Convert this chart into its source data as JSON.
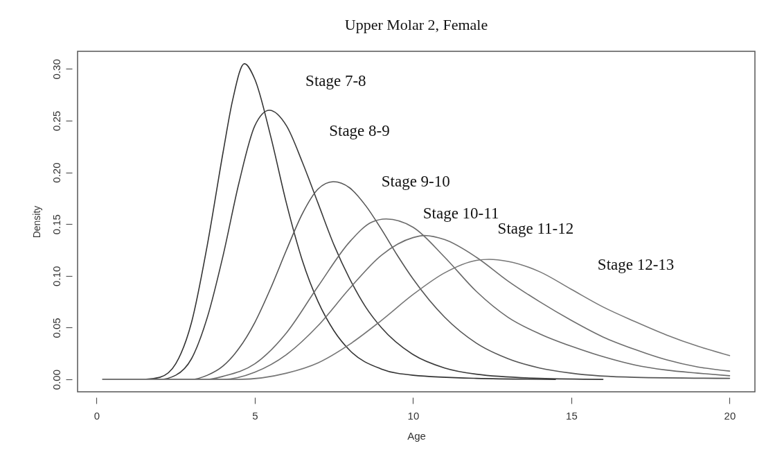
{
  "chart_data": {
    "type": "line",
    "title": "Upper Molar 2, Female",
    "xlabel": "Age",
    "ylabel": "Density",
    "xlim": [
      -0.6,
      20.8
    ],
    "ylim": [
      -0.012,
      0.317
    ],
    "xticks": [
      0,
      5,
      10,
      15,
      20
    ],
    "yticks": [
      {
        "value": 0,
        "label": "0.00"
      },
      {
        "value": 0.05,
        "label": "0.05"
      },
      {
        "value": 0.1,
        "label": "0.10"
      },
      {
        "value": 0.15,
        "label": "0.15"
      },
      {
        "value": 0.2,
        "label": "0.20"
      },
      {
        "value": 0.25,
        "label": "0.25"
      },
      {
        "value": 0.3,
        "label": "0.30"
      }
    ],
    "grid": false,
    "legend": false,
    "line_style": "solid",
    "series": [
      {
        "color": "#333333",
        "x": [
          0.2,
          1.5,
          2.0,
          2.5,
          3.0,
          3.5,
          4.0,
          4.3,
          4.67,
          5.0,
          5.5,
          6.0,
          6.5,
          7.0,
          7.5,
          8.0,
          9.0,
          10.0,
          12.0,
          14.5
        ],
        "values": [
          0,
          0,
          0.002,
          0.015,
          0.055,
          0.13,
          0.22,
          0.27,
          0.305,
          0.29,
          0.235,
          0.17,
          0.115,
          0.075,
          0.047,
          0.028,
          0.01,
          0.004,
          0.001,
          0
        ]
      },
      {
        "color": "#3a3a3a",
        "x": [
          0.2,
          2.0,
          2.5,
          3.0,
          3.5,
          4.0,
          4.5,
          5.0,
          5.46,
          6.0,
          6.5,
          7.0,
          7.5,
          8.0,
          8.5,
          9.0,
          10.0,
          11.0,
          12.0,
          14.0,
          16.0
        ],
        "values": [
          0,
          0,
          0.004,
          0.02,
          0.06,
          0.12,
          0.19,
          0.245,
          0.26,
          0.245,
          0.21,
          0.17,
          0.13,
          0.097,
          0.07,
          0.05,
          0.024,
          0.011,
          0.005,
          0.001,
          0
        ]
      },
      {
        "color": "#555555",
        "x": [
          0.2,
          3.0,
          3.5,
          4.0,
          4.5,
          5.0,
          5.5,
          6.0,
          6.5,
          7.0,
          7.48,
          8.0,
          8.5,
          9.0,
          9.5,
          10.0,
          11.0,
          12.0,
          13.0,
          14.0,
          15.0,
          17.0,
          20.0
        ],
        "values": [
          0,
          0,
          0.004,
          0.013,
          0.03,
          0.055,
          0.088,
          0.125,
          0.16,
          0.184,
          0.191,
          0.185,
          0.168,
          0.145,
          0.12,
          0.097,
          0.06,
          0.035,
          0.02,
          0.011,
          0.006,
          0.002,
          0.001
        ]
      },
      {
        "color": "#6a6a6a",
        "x": [
          0.2,
          3.5,
          4.0,
          5.0,
          6.0,
          7.0,
          8.0,
          8.7,
          9.15,
          10.0,
          11.0,
          12.0,
          13.0,
          14.0,
          15.0,
          16.0,
          17.0,
          18.0,
          19.0,
          20.0
        ],
        "values": [
          0,
          0,
          0.003,
          0.015,
          0.045,
          0.09,
          0.133,
          0.152,
          0.155,
          0.147,
          0.118,
          0.085,
          0.06,
          0.044,
          0.032,
          0.022,
          0.014,
          0.009,
          0.006,
          0.0035
        ]
      },
      {
        "color": "#6e6e6e",
        "x": [
          0.2,
          4.0,
          5.0,
          6.0,
          7.0,
          8.0,
          9.0,
          10.0,
          10.35,
          11.0,
          12.0,
          13.0,
          14.0,
          15.0,
          16.0,
          17.0,
          18.0,
          19.0,
          20.0
        ],
        "values": [
          0,
          0,
          0.007,
          0.024,
          0.052,
          0.088,
          0.12,
          0.137,
          0.139,
          0.135,
          0.118,
          0.095,
          0.075,
          0.057,
          0.041,
          0.029,
          0.019,
          0.012,
          0.008
        ]
      },
      {
        "color": "#777777",
        "x": [
          0.2,
          4.5,
          6.0,
          7.0,
          8.0,
          9.0,
          10.0,
          11.0,
          12.0,
          12.4,
          13.0,
          14.0,
          15.0,
          16.0,
          17.0,
          18.0,
          19.0,
          20.0
        ],
        "values": [
          0,
          0,
          0.006,
          0.016,
          0.034,
          0.057,
          0.082,
          0.103,
          0.115,
          0.116,
          0.114,
          0.104,
          0.087,
          0.07,
          0.056,
          0.043,
          0.032,
          0.023
        ]
      }
    ],
    "annotations": [
      "Stage 7-8",
      "Stage 8-9",
      "Stage 9-10",
      "Stage 10-11",
      "Stage 11-12",
      "Stage 12-13"
    ]
  }
}
